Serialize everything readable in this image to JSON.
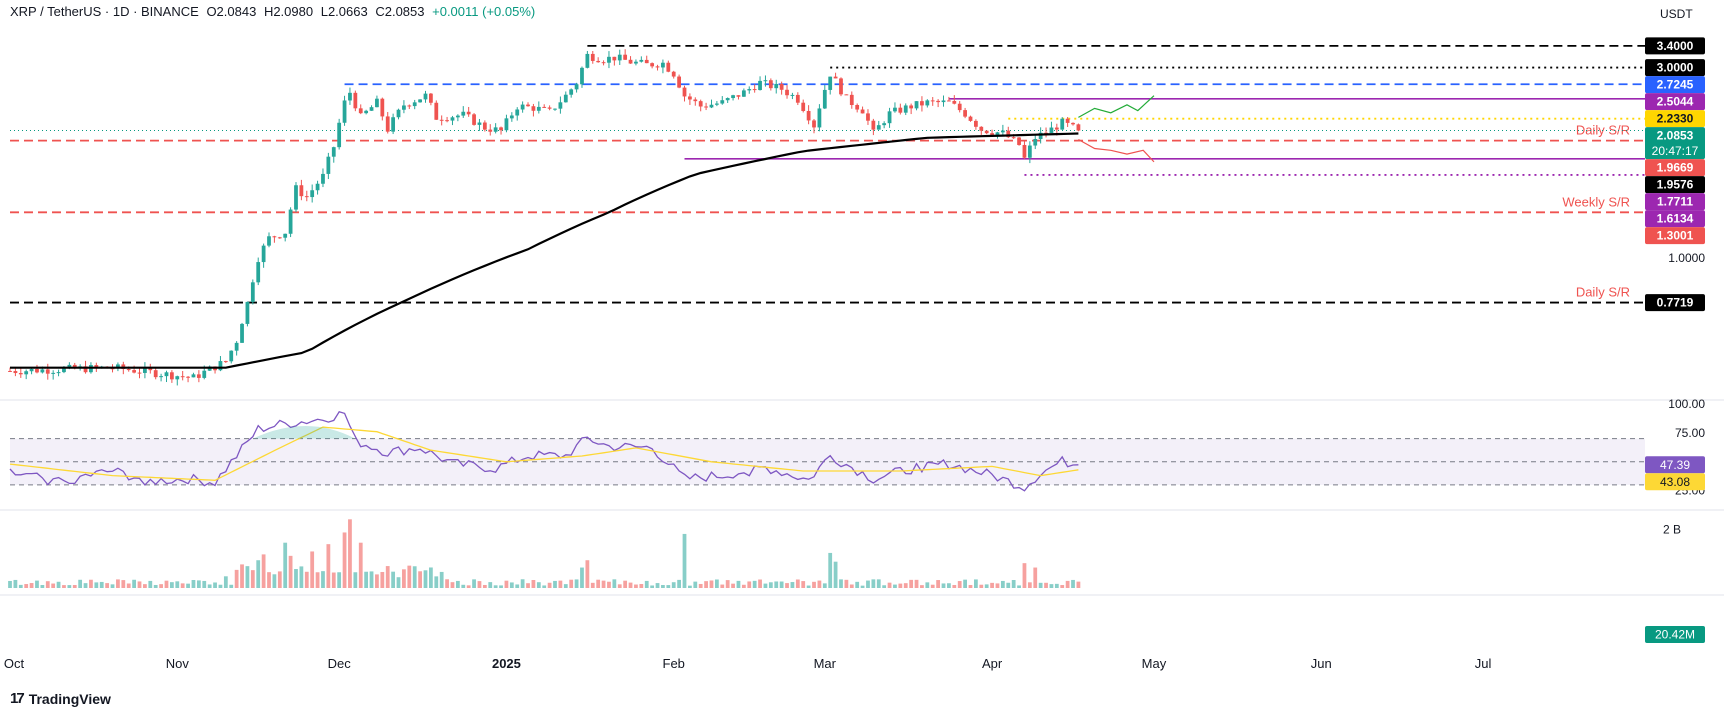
{
  "header": {
    "symbol": "XRP / TetherUS · 1D · BINANCE",
    "open": "O2.0843",
    "high": "H2.0980",
    "low": "L2.0663",
    "close": "C2.0853",
    "change": "+0.0011 (+0.05%)"
  },
  "currency_label": "USDT",
  "branding": "TradingView",
  "colors": {
    "up": "#26a69a",
    "down": "#ef5350",
    "purple": "#9c27b0",
    "blue": "#2962ff",
    "black": "#000000",
    "yellow": "#ffd600",
    "rsi": "#7e57c2",
    "rsi_ma": "#fdd835",
    "sma": "#000000"
  },
  "chart_data": [
    {
      "type": "candlestick",
      "panel": "price",
      "title": "XRP / TetherUS · 1D · BINANCE",
      "x_tick_labels": [
        "Oct",
        "Nov",
        "Dec",
        "2025",
        "Feb",
        "Mar",
        "Apr",
        "May",
        "Jun",
        "Jul"
      ],
      "x_range": [
        "2024-10-01",
        "2025-07-31"
      ],
      "y_scale": "log",
      "y_ticks": [
        1.0
      ],
      "ylim": [
        0.45,
        3.6
      ],
      "close_path": [
        [
          "2024-10-01",
          0.52
        ],
        [
          "2024-10-20",
          0.53
        ],
        [
          "2024-11-04",
          0.5
        ],
        [
          "2024-11-10",
          0.55
        ],
        [
          "2024-11-12",
          0.62
        ],
        [
          "2024-11-14",
          0.77
        ],
        [
          "2024-11-16",
          1.0
        ],
        [
          "2024-11-18",
          1.12
        ],
        [
          "2024-11-21",
          1.16
        ],
        [
          "2024-11-23",
          1.49
        ],
        [
          "2024-11-25",
          1.42
        ],
        [
          "2024-11-28",
          1.6
        ],
        [
          "2024-11-30",
          1.9
        ],
        [
          "2024-12-02",
          2.45
        ],
        [
          "2024-12-03",
          2.6
        ],
        [
          "2024-12-05",
          2.25
        ],
        [
          "2024-12-08",
          2.45
        ],
        [
          "2024-12-10",
          2.1
        ],
        [
          "2024-12-13",
          2.42
        ],
        [
          "2024-12-17",
          2.55
        ],
        [
          "2024-12-19",
          2.25
        ],
        [
          "2024-12-24",
          2.28
        ],
        [
          "2024-12-28",
          2.12
        ],
        [
          "2024-12-31",
          2.08
        ],
        [
          "2025-01-03",
          2.4
        ],
        [
          "2025-01-06",
          2.38
        ],
        [
          "2025-01-09",
          2.32
        ],
        [
          "2025-01-12",
          2.55
        ],
        [
          "2025-01-14",
          2.75
        ],
        [
          "2025-01-16",
          3.22
        ],
        [
          "2025-01-19",
          3.15
        ],
        [
          "2025-01-21",
          3.18
        ],
        [
          "2025-01-24",
          3.1
        ],
        [
          "2025-01-27",
          3.05
        ],
        [
          "2025-01-30",
          3.08
        ],
        [
          "2025-02-01",
          2.9
        ],
        [
          "2025-02-03",
          2.55
        ],
        [
          "2025-02-06",
          2.4
        ],
        [
          "2025-02-10",
          2.45
        ],
        [
          "2025-02-14",
          2.6
        ],
        [
          "2025-02-17",
          2.75
        ],
        [
          "2025-02-21",
          2.65
        ],
        [
          "2025-02-24",
          2.5
        ],
        [
          "2025-02-27",
          2.15
        ],
        [
          "2025-03-02",
          2.9
        ],
        [
          "2025-03-05",
          2.5
        ],
        [
          "2025-03-08",
          2.35
        ],
        [
          "2025-03-10",
          2.05
        ],
        [
          "2025-03-13",
          2.3
        ],
        [
          "2025-03-17",
          2.4
        ],
        [
          "2025-03-20",
          2.45
        ],
        [
          "2025-03-24",
          2.45
        ],
        [
          "2025-03-27",
          2.3
        ],
        [
          "2025-03-30",
          2.1
        ],
        [
          "2025-04-03",
          2.05
        ],
        [
          "2025-04-06",
          1.92
        ],
        [
          "2025-04-07",
          1.77
        ],
        [
          "2025-04-09",
          2.0
        ],
        [
          "2025-04-12",
          2.1
        ],
        [
          "2025-04-14",
          2.18
        ],
        [
          "2025-04-17",
          2.0853
        ]
      ],
      "sma_200_path": [
        [
          "2024-10-01",
          0.53
        ],
        [
          "2024-11-10",
          0.53
        ],
        [
          "2024-11-25",
          0.58
        ],
        [
          "2024-12-15",
          0.8
        ],
        [
          "2025-01-05",
          1.05
        ],
        [
          "2025-01-20",
          1.3
        ],
        [
          "2025-02-05",
          1.62
        ],
        [
          "2025-02-25",
          1.85
        ],
        [
          "2025-03-20",
          2.0
        ],
        [
          "2025-04-17",
          2.05
        ]
      ],
      "levels": [
        {
          "price": "3.4000",
          "value": 3.4,
          "style": "dashed",
          "color": "#000000",
          "from": "2025-01-16"
        },
        {
          "price": "3.0000",
          "value": 3.0,
          "style": "dotted",
          "color": "#000000",
          "from": "2025-03-02"
        },
        {
          "price": "2.7245",
          "value": 2.7245,
          "style": "dashed",
          "color": "#2962ff",
          "from": "2024-12-02"
        },
        {
          "price": "2.5044",
          "value": 2.5044,
          "style": "solid",
          "color": "#9c27b0",
          "from": "2025-03-24"
        },
        {
          "price": "2.2330",
          "value": 2.233,
          "style": "dotted",
          "color": "#ffd600",
          "from": "2025-04-04"
        },
        {
          "price": "1.9669",
          "value": 1.9669,
          "style": "dashed",
          "color": "#ef5350",
          "from": "2024-10-01",
          "annotation": "Daily S/R"
        },
        {
          "price": "1.7711",
          "value": 1.7711,
          "style": "solid",
          "color": "#9c27b0",
          "from": "2025-02-03"
        },
        {
          "price": "1.6134",
          "value": 1.6134,
          "style": "dotted",
          "color": "#9c27b0",
          "from": "2025-04-07"
        },
        {
          "price": "1.3001",
          "value": 1.3001,
          "style": "dashed",
          "color": "#ef5350",
          "from": "2024-10-01",
          "annotation": "Weekly S/R"
        },
        {
          "price": "0.7719",
          "value": 0.7719,
          "style": "dashed",
          "color": "#000000",
          "from": "2024-10-01",
          "annotation": "Daily S/R"
        }
      ],
      "price_tags": [
        {
          "text": "3.4000",
          "value": 3.4,
          "bg": "#000000",
          "fg": "#ffffff"
        },
        {
          "text": "3.0000",
          "value": 3.0,
          "bg": "#000000",
          "fg": "#ffffff"
        },
        {
          "text": "2.7245",
          "value": 2.7245,
          "bg": "#2962ff",
          "fg": "#ffffff"
        },
        {
          "text": "2.5044",
          "value": 2.5044,
          "bg": "#9c27b0",
          "fg": "#ffffff"
        },
        {
          "text": "2.2330",
          "value": 2.233,
          "bg": "#ffd600",
          "fg": "#131722"
        },
        {
          "text": "2.0853",
          "value": 2.0853,
          "bg": "#089981",
          "fg": "#ffffff",
          "countdown": "20:47:17"
        },
        {
          "text": "1.9669",
          "value": 1.9669,
          "bg": "#ef5350",
          "fg": "#ffffff"
        },
        {
          "text": "1.9576",
          "value": 1.9576,
          "bg": "#000000",
          "fg": "#ffffff"
        },
        {
          "text": "1.7711",
          "value": 1.7711,
          "bg": "#9c27b0",
          "fg": "#ffffff"
        },
        {
          "text": "1.6134",
          "value": 1.6134,
          "bg": "#9c27b0",
          "fg": "#ffffff"
        },
        {
          "text": "1.3001",
          "value": 1.3001,
          "bg": "#ef5350",
          "fg": "#ffffff"
        },
        {
          "text": "0.7719",
          "value": 0.7719,
          "bg": "#000000",
          "fg": "#ffffff"
        }
      ],
      "projections": [
        {
          "direction": "up",
          "color": "#22ab38",
          "path": [
            [
              "2025-04-17",
              2.25
            ],
            [
              "2025-04-20",
              2.37
            ],
            [
              "2025-04-23",
              2.31
            ],
            [
              "2025-04-26",
              2.42
            ],
            [
              "2025-04-28",
              2.34
            ],
            [
              "2025-05-01",
              2.55
            ]
          ]
        },
        {
          "direction": "down",
          "color": "#ef5350",
          "path": [
            [
              "2025-04-17",
              1.98
            ],
            [
              "2025-04-20",
              1.88
            ],
            [
              "2025-04-23",
              1.86
            ],
            [
              "2025-04-26",
              1.82
            ],
            [
              "2025-04-29",
              1.86
            ],
            [
              "2025-05-01",
              1.74
            ]
          ]
        }
      ]
    },
    {
      "type": "line",
      "panel": "rsi",
      "y_ticks": [
        100.0,
        75.0,
        25.0
      ],
      "ylim": [
        10,
        100
      ],
      "band": [
        30,
        70
      ],
      "last": {
        "rsi": "47.39",
        "rsi_value": 47.39,
        "ma": "43.08",
        "ma_value": 43.08
      },
      "series": [
        {
          "key": "rsi",
          "color": "#7e57c2",
          "path": [
            [
              "2024-10-01",
              40
            ],
            [
              "2024-10-10",
              33
            ],
            [
              "2024-10-20",
              42
            ],
            [
              "2024-10-27",
              33
            ],
            [
              "2024-11-03",
              35
            ],
            [
              "2024-11-08",
              32
            ],
            [
              "2024-11-12",
              55
            ],
            [
              "2024-11-16",
              78
            ],
            [
              "2024-11-20",
              82
            ],
            [
              "2024-11-25",
              85
            ],
            [
              "2024-11-28",
              87
            ],
            [
              "2024-12-02",
              92
            ],
            [
              "2024-12-04",
              68
            ],
            [
              "2024-12-10",
              58
            ],
            [
              "2024-12-16",
              62
            ],
            [
              "2024-12-22",
              48
            ],
            [
              "2024-12-30",
              44
            ],
            [
              "2025-01-05",
              55
            ],
            [
              "2025-01-12",
              55
            ],
            [
              "2025-01-16",
              70
            ],
            [
              "2025-01-20",
              63
            ],
            [
              "2025-01-28",
              62
            ],
            [
              "2025-02-03",
              35
            ],
            [
              "2025-02-10",
              38
            ],
            [
              "2025-02-18",
              45
            ],
            [
              "2025-02-26",
              34
            ],
            [
              "2025-03-02",
              55
            ],
            [
              "2025-03-10",
              35
            ],
            [
              "2025-03-18",
              45
            ],
            [
              "2025-03-24",
              48
            ],
            [
              "2025-04-01",
              38
            ],
            [
              "2025-04-07",
              28
            ],
            [
              "2025-04-10",
              40
            ],
            [
              "2025-04-14",
              50
            ],
            [
              "2025-04-17",
              47.39
            ]
          ]
        },
        {
          "key": "rsi-ma",
          "color": "#fdd835",
          "path": [
            [
              "2024-10-01",
              48
            ],
            [
              "2024-10-20",
              38
            ],
            [
              "2024-11-08",
              34
            ],
            [
              "2024-11-20",
              62
            ],
            [
              "2024-11-28",
              80
            ],
            [
              "2024-12-08",
              76
            ],
            [
              "2024-12-18",
              60
            ],
            [
              "2025-01-01",
              50
            ],
            [
              "2025-01-15",
              55
            ],
            [
              "2025-01-25",
              62
            ],
            [
              "2025-02-08",
              50
            ],
            [
              "2025-02-25",
              42
            ],
            [
              "2025-03-15",
              42
            ],
            [
              "2025-04-01",
              46
            ],
            [
              "2025-04-10",
              38
            ],
            [
              "2025-04-17",
              43.08
            ]
          ]
        }
      ]
    },
    {
      "type": "bar",
      "panel": "volume",
      "y_ticks_text": [
        "2 B"
      ],
      "y_ticks": [
        2000000000
      ],
      "last": {
        "label": "20.42M",
        "value": 20420000
      },
      "spikes": [
        [
          "2024-11-10",
          0.4
        ],
        [
          "2024-11-12",
          0.62
        ],
        [
          "2024-11-16",
          0.95
        ],
        [
          "2024-11-17",
          1.15
        ],
        [
          "2024-11-21",
          1.55
        ],
        [
          "2024-11-22",
          1.1
        ],
        [
          "2024-11-26",
          1.25
        ],
        [
          "2024-11-29",
          1.5
        ],
        [
          "2024-12-02",
          1.9
        ],
        [
          "2024-12-03",
          2.35
        ],
        [
          "2024-12-05",
          1.55
        ],
        [
          "2024-12-10",
          0.75
        ],
        [
          "2024-12-20",
          0.55
        ],
        [
          "2025-01-15",
          0.7
        ],
        [
          "2025-01-16",
          0.95
        ],
        [
          "2025-02-03",
          1.85
        ],
        [
          "2025-03-02",
          1.2
        ],
        [
          "2025-03-03",
          0.9
        ],
        [
          "2025-04-07",
          0.85
        ],
        [
          "2025-04-09",
          0.7
        ]
      ]
    }
  ]
}
